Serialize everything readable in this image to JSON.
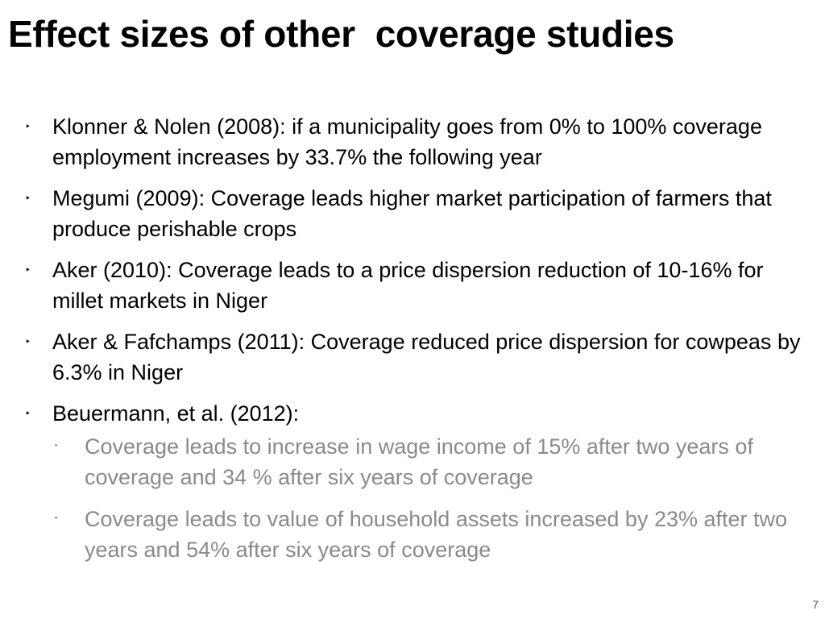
{
  "slide": {
    "title": "Effect sizes of other  coverage studies",
    "bullet_marker": "‣",
    "bullets": [
      {
        "text": "Klonner & Nolen (2008): if a municipality goes from 0% to 100% coverage employment increases by 33.7% the following year"
      },
      {
        "text": "Megumi (2009): Coverage leads higher market participation of farmers that produce perishable crops"
      },
      {
        "text": "Aker (2010): Coverage leads to a price dispersion reduction of 10-16% for millet markets in Niger"
      },
      {
        "text": "Aker & Fafchamps (2011): Coverage reduced price dispersion for cowpeas by 6.3% in Niger"
      },
      {
        "text": "Beuermann, et al. (2012):",
        "sub_bullets": [
          {
            "text": "Coverage leads to increase in wage income of 15% after two years of coverage and 34 % after six years of coverage"
          },
          {
            "text": "Coverage leads to value of household assets increased by 23% after two years and 54% after six years of coverage"
          }
        ]
      }
    ],
    "page_number": "7"
  },
  "colors": {
    "text": "#000000",
    "sub_text": "#8a8a8a",
    "background": "#ffffff"
  }
}
